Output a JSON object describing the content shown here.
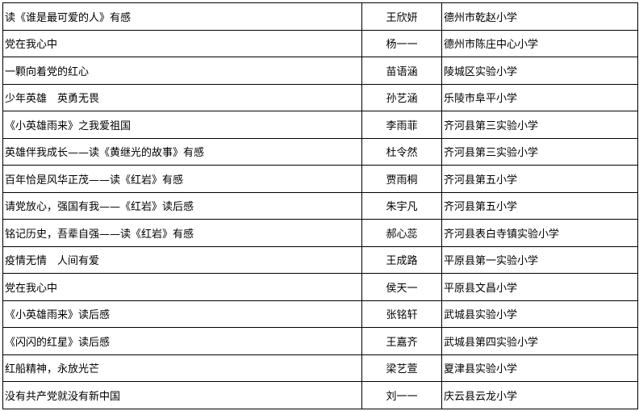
{
  "table": {
    "rows": [
      {
        "title": "读《谁是最可爱的人》有感",
        "name": "王欣妍",
        "school": "德州市乾赵小学"
      },
      {
        "title": "党在我心中",
        "name": "杨一一",
        "school": "德州市陈庄中心小学"
      },
      {
        "title": "一颗向着党的红心",
        "name": "苗语涵",
        "school": "陵城区实验小学"
      },
      {
        "title": "少年英雄　英勇无畏",
        "name": "孙艺涵",
        "school": "乐陵市阜平小学"
      },
      {
        "title": "《小英雄雨来》之我爱祖国",
        "name": "李雨菲",
        "school": "齐河县第三实验小学"
      },
      {
        "title": "英雄伴我成长——读《黄继光的故事》有感",
        "name": "杜令然",
        "school": "齐河县第三实验小学"
      },
      {
        "title": "百年恰是风华正茂——读《红岩》有感",
        "name": "贾雨桐",
        "school": "齐河县第五小学"
      },
      {
        "title": "请党放心，强国有我——《红岩》读后感",
        "name": "朱宇凡",
        "school": "齐河县第五小学"
      },
      {
        "title": "铭记历史，吾辈自强——读《红岩》有感",
        "name": "郝心蕊",
        "school": "齐河县表白寺镇实验小学"
      },
      {
        "title": "疫情无情　人间有爱",
        "name": "王成路",
        "school": "平原县第一实验小学"
      },
      {
        "title": "党在我心中",
        "name": "侯天一",
        "school": "平原县文昌小学"
      },
      {
        "title": "《小英雄雨来》读后感",
        "name": "张铭轩",
        "school": "武城县实验小学"
      },
      {
        "title": "《闪闪的红星》读后感",
        "name": "王嘉齐",
        "school": "武城县第四实验小学"
      },
      {
        "title": "红船精神，永放光芒",
        "name": "梁艺萱",
        "school": "夏津县实验小学"
      },
      {
        "title": "没有共产党就没有新中国",
        "name": "刘一一",
        "school": "庆云县云龙小学"
      }
    ]
  }
}
